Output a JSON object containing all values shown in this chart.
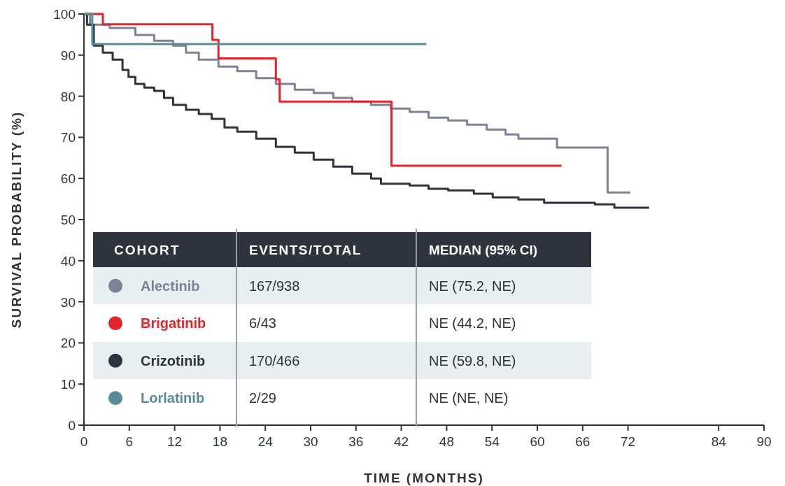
{
  "chart_data": {
    "type": "step",
    "xlabel": "TIME (MONTHS)",
    "ylabel": "SURVIVAL PROBABILITY (%)",
    "xlim": [
      0,
      90
    ],
    "xticks": [
      0,
      6,
      12,
      18,
      24,
      30,
      36,
      42,
      48,
      54,
      60,
      66,
      72,
      84,
      90
    ],
    "ylim": [
      0,
      100
    ],
    "yticks": [
      0,
      10,
      20,
      30,
      40,
      50,
      60,
      70,
      80,
      90,
      100
    ],
    "legend": "bottom left",
    "legend_title": "COHORT",
    "line_style": "solid",
    "annotations": [
      "EVENTS/TOTAL",
      "MEDIAN (95% CI)",
      "167/938",
      "NE (75.2, NE)",
      "6/43",
      "NE (44.2, NE)",
      "170/466",
      "NE (59.8, NE)",
      "2/29",
      "NE (NE, NE)"
    ],
    "series": [
      {
        "name": "Alectinib",
        "color": "#7d8296",
        "x": [
          0,
          0.8,
          3.4,
          6.8,
          9.3,
          11.8,
          13.5,
          15.2,
          17.8,
          20.3,
          22.8,
          25.4,
          27.9,
          30.4,
          33.0,
          35.5,
          38.0,
          40.6,
          43.1,
          45.6,
          48.2,
          50.7,
          53.3,
          55.8,
          57.5,
          62.6,
          69.3,
          72.3
        ],
        "values": [
          100,
          97.4,
          96.6,
          94.9,
          93.5,
          92.3,
          90.6,
          88.9,
          87.2,
          86.1,
          84.4,
          83.0,
          81.6,
          80.8,
          79.6,
          78.7,
          77.9,
          77.0,
          76.2,
          74.8,
          74.1,
          73.1,
          71.9,
          70.7,
          69.7,
          67.5,
          56.6,
          56.6
        ]
      },
      {
        "name": "Brigatinib",
        "color": "#e3242b",
        "x": [
          0,
          2.5,
          17.0,
          17.8,
          25.4,
          25.9,
          40.7,
          63.2
        ],
        "values": [
          100,
          97.5,
          93.7,
          89.2,
          84.1,
          78.7,
          63.1,
          63.1
        ]
      },
      {
        "name": "Crizotinib",
        "color": "#2f333d",
        "x": [
          0,
          0.4,
          1.3,
          2.5,
          3.8,
          5.1,
          5.9,
          6.8,
          8.0,
          9.3,
          10.6,
          11.8,
          13.5,
          15.2,
          16.9,
          18.6,
          20.3,
          22.8,
          25.4,
          27.9,
          30.4,
          33.0,
          35.5,
          38.0,
          39.3,
          43.1,
          45.6,
          48.2,
          51.6,
          54.1,
          57.5,
          60.9,
          67.6,
          70.2,
          74.8
        ],
        "values": [
          100,
          97.4,
          92.3,
          90.6,
          88.9,
          86.4,
          84.7,
          83.0,
          82.1,
          81.3,
          79.6,
          77.9,
          76.7,
          75.7,
          74.5,
          72.4,
          71.4,
          69.7,
          67.7,
          66.3,
          64.6,
          62.9,
          61.2,
          60.0,
          58.7,
          58.3,
          57.5,
          57.1,
          56.3,
          55.4,
          54.9,
          54.1,
          53.7,
          52.9,
          52.9
        ]
      },
      {
        "name": "Lorlatinib",
        "color": "#5a8b99",
        "x": [
          0,
          0.9,
          1.1,
          45.3
        ],
        "values": [
          100,
          100,
          92.7,
          92.7
        ]
      }
    ]
  }
}
